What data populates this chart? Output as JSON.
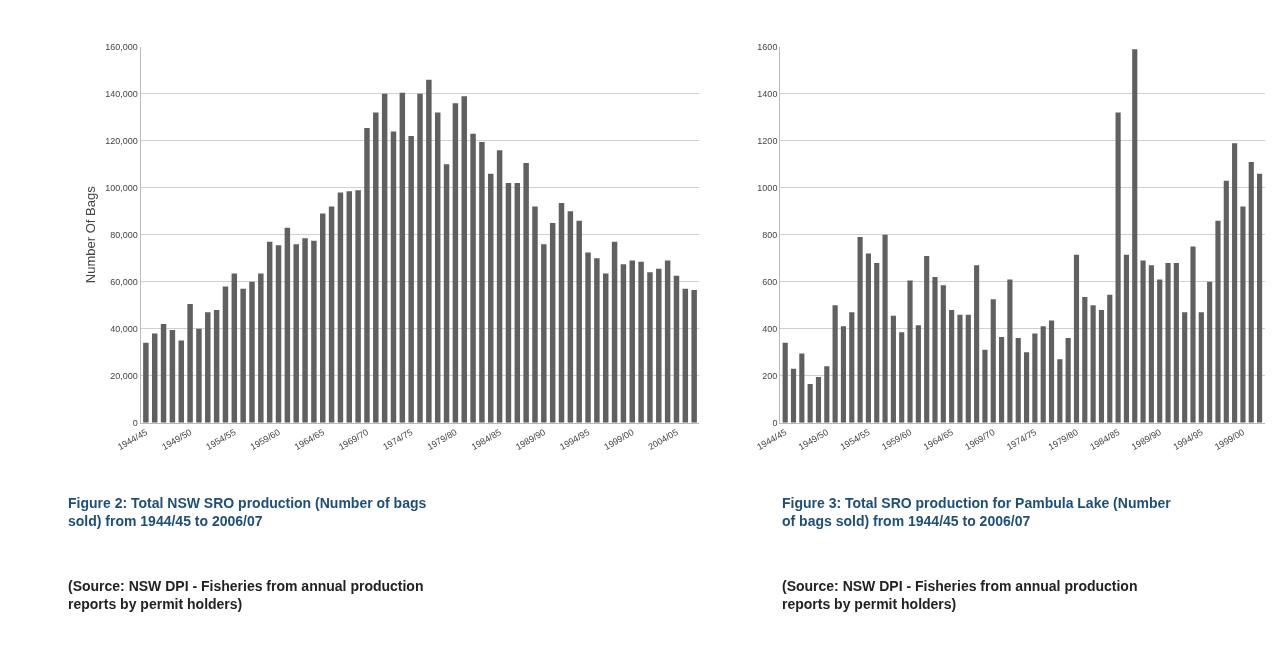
{
  "chart_data": [
    {
      "type": "bar",
      "ylabel": "Number Of Bags",
      "categories": [
        "1944/45",
        null,
        null,
        null,
        null,
        "1949/50",
        null,
        null,
        null,
        null,
        "1954/55",
        null,
        null,
        null,
        null,
        "1959/60",
        null,
        null,
        null,
        null,
        "1964/65",
        null,
        null,
        null,
        null,
        "1969/70",
        null,
        null,
        null,
        null,
        "1974/75",
        null,
        null,
        null,
        null,
        "1979/80",
        null,
        null,
        null,
        null,
        "1984/85",
        null,
        null,
        null,
        null,
        "1989/90",
        null,
        null,
        null,
        null,
        "1994/95",
        null,
        null,
        null,
        null,
        "1999/00",
        null,
        null,
        null,
        null,
        "2004/05",
        null,
        null
      ],
      "values": [
        34000,
        38000,
        42000,
        39500,
        35000,
        50500,
        40000,
        47000,
        48000,
        58000,
        63500,
        57000,
        60000,
        63500,
        77000,
        75500,
        83000,
        76000,
        78500,
        77500,
        89000,
        92000,
        98000,
        98500,
        99000,
        125500,
        132000,
        140000,
        124000,
        140500,
        122000,
        140000,
        146000,
        132000,
        110000,
        136000,
        139000,
        123000,
        119500,
        106000,
        116000,
        102000,
        102000,
        110500,
        92000,
        76000,
        85000,
        93500,
        90000,
        86000,
        72500,
        70000,
        63500,
        77000,
        67500,
        69000,
        68500,
        64000,
        65500,
        69000,
        62500,
        57000,
        56500
      ],
      "color": "#606060",
      "ylim": [
        0,
        160000
      ],
      "yticks": [
        0,
        {
          "value": 20000,
          "label": "20,000"
        },
        {
          "value": 40000,
          "label": "40,000"
        },
        {
          "value": 60000,
          "label": "60,000"
        },
        {
          "value": 80000,
          "label": "80,000"
        },
        {
          "value": 100000,
          "label": "100,000"
        },
        {
          "value": 120000,
          "label": "120,000"
        },
        {
          "value": 140000,
          "label": "140,000"
        },
        {
          "value": 160000,
          "label": "160,000"
        }
      ],
      "grid": "y",
      "annotations": [
        "Figure 2: Total NSW SRO production (Number of bags sold) from 1944/45 to 2006/07",
        "(Source: NSW DPI - Fisheries from annual production reports by permit holders)"
      ]
    },
    {
      "type": "bar",
      "categories": [
        "1944/45",
        null,
        null,
        null,
        null,
        "1949/50",
        null,
        null,
        null,
        null,
        "1954/55",
        null,
        null,
        null,
        null,
        "1959/60",
        null,
        null,
        null,
        null,
        "1964/65",
        null,
        null,
        null,
        null,
        "1969/70",
        null,
        null,
        null,
        null,
        "1974/75",
        null,
        null,
        null,
        null,
        "1979/80",
        null,
        null,
        null,
        null,
        "1984/85",
        null,
        null,
        null,
        null,
        "1989/90",
        null,
        null,
        null,
        null,
        "1994/95",
        null,
        null,
        null,
        null,
        "1999/00",
        null,
        null
      ],
      "values": [
        340,
        230,
        295,
        165,
        195,
        240,
        500,
        410,
        470,
        790,
        720,
        680,
        800,
        455,
        385,
        605,
        415,
        710,
        620,
        585,
        480,
        460,
        460,
        670,
        310,
        525,
        365,
        610,
        360,
        300,
        380,
        410,
        435,
        270,
        360,
        715,
        535,
        500,
        480,
        545,
        1320,
        715,
        1590,
        690,
        670,
        610,
        680,
        680,
        470,
        750,
        470,
        600,
        860,
        1030,
        1190,
        920,
        1110,
        1060
      ],
      "color": "#606060",
      "ylim": [
        0,
        1600
      ],
      "yticks": [
        0,
        200,
        400,
        600,
        800,
        1000,
        1200,
        1400,
        1600
      ],
      "grid": "y",
      "annotations": [
        "Figure 3: Total SRO production for Pambula Lake (Number of bags sold) from 1944/45 to 2006/07",
        "(Source: NSW DPI - Fisheries from annual production reports by permit holders)"
      ]
    }
  ]
}
